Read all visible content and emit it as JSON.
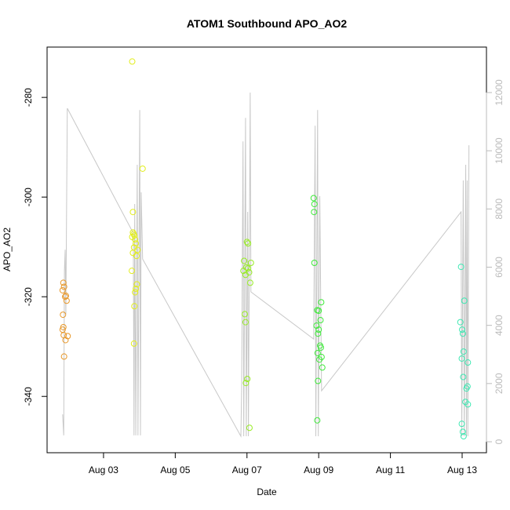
{
  "chart_data": {
    "type": "scatter",
    "title": "ATOM1 Southbound APO_AO2",
    "xlabel": "Date",
    "ylabel": "APO_AO2",
    "xlim": [
      1.426,
      13.678
    ],
    "xticks": [
      {
        "value": 3,
        "label": "Aug 03"
      },
      {
        "value": 5,
        "label": "Aug 05"
      },
      {
        "value": 7,
        "label": "Aug 07"
      },
      {
        "value": 9,
        "label": "Aug 09"
      },
      {
        "value": 11,
        "label": "Aug 11"
      },
      {
        "value": 13,
        "label": "Aug 13"
      }
    ],
    "ylim": [
      -351.3,
      -269.9
    ],
    "yticks": [
      -340,
      -320,
      -300,
      -280
    ],
    "y2lim": [
      -377,
      13563
    ],
    "y2ticks": [
      0,
      2000,
      4000,
      6000,
      8000,
      10000,
      12000
    ],
    "series": [
      {
        "color": "#e8982a",
        "x": [
          1.88,
          1.9,
          1.86,
          1.95,
          1.93,
          1.97,
          1.87,
          1.88,
          1.86,
          1.89,
          2.0,
          1.94,
          1.9
        ],
        "values": [
          -317.2,
          -318,
          -318.7,
          -319.8,
          -320,
          -320.8,
          -323.6,
          -326.1,
          -326.6,
          -327.7,
          -327.9,
          -328.7,
          -332
        ]
      },
      {
        "color": "#e2ee1e",
        "x": [
          3.8,
          4.09,
          3.82,
          3.82,
          3.84,
          3.86,
          3.8,
          3.88,
          3.9,
          3.85,
          3.95,
          3.82,
          3.92,
          3.79,
          3.93,
          3.9,
          3.88,
          3.86,
          3.85
        ],
        "values": [
          -272.8,
          -294.3,
          -303,
          -307.1,
          -307.4,
          -307.7,
          -308,
          -308.5,
          -309.3,
          -310.1,
          -310.6,
          -311.2,
          -311.8,
          -314.8,
          -317.5,
          -318.4,
          -319.1,
          -321.9,
          -329.4
        ]
      },
      {
        "color": "#98ec26",
        "x": [
          7.0,
          7.03,
          6.92,
          7.11,
          6.98,
          7.03,
          6.9,
          7.06,
          6.96,
          7.09,
          6.94,
          6.96,
          7.01,
          6.97,
          7.07
        ],
        "values": [
          -309,
          -309.3,
          -312.8,
          -313.2,
          -314.1,
          -314.3,
          -314.8,
          -315.1,
          -315.6,
          -317.2,
          -323.5,
          -325.1,
          -336.5,
          -337.3,
          -346.3
        ]
      },
      {
        "color": "#3eea3a",
        "x": [
          8.86,
          8.88,
          8.87,
          8.88,
          9.07,
          8.96,
          9.0,
          9.05,
          8.94,
          9.0,
          8.98,
          9.04,
          9.06,
          8.97,
          9.08,
          9.02,
          9.1,
          8.98,
          8.96
        ],
        "values": [
          -300.2,
          -301.4,
          -303,
          -313.2,
          -321.1,
          -322.7,
          -322.8,
          -324.7,
          -325.8,
          -326.6,
          -327.4,
          -329.8,
          -330.2,
          -331.3,
          -332.1,
          -332.6,
          -334.2,
          -336.9,
          -344.8
        ]
      },
      {
        "color": "#3ee8b2",
        "x": [
          12.97,
          13.06,
          12.95,
          13.0,
          13.02,
          13.04,
          12.99,
          13.16,
          13.03,
          13.15,
          13.12,
          13.09,
          13.16,
          12.99,
          13.02,
          13.04
        ],
        "values": [
          -314,
          -320.8,
          -325.1,
          -326.6,
          -327.4,
          -331,
          -332.4,
          -333.2,
          -336.1,
          -338,
          -338.4,
          -341.1,
          -341.6,
          -345.5,
          -347.1,
          -348
        ]
      },
      {
        "type": "line",
        "axis": "y2",
        "color": "#c8c8c8",
        "x": [
          1.86,
          1.89,
          1.91,
          1.93,
          1.95,
          1.97,
          1.99,
          3.83,
          3.85,
          3.87,
          3.9,
          3.94,
          3.96,
          4.01,
          4.03,
          4.05,
          4.09,
          6.83,
          6.85,
          6.89,
          6.91,
          6.96,
          6.98,
          7.02,
          7.04,
          7.09,
          7.11,
          8.86,
          8.9,
          8.92,
          8.97,
          8.99,
          9.03,
          9.08,
          12.97,
          12.99,
          13.03,
          13.06,
          13.1,
          13.12,
          13.14,
          13.16,
          13.19
        ],
        "values": [
          940,
          220,
          5880,
          6600,
          4390,
          8030,
          11460,
          7170,
          220,
          8170,
          220,
          9520,
          220,
          11400,
          220,
          8570,
          6280,
          190,
          1700,
          10320,
          190,
          11130,
          190,
          7900,
          190,
          12000,
          5150,
          3530,
          10860,
          190,
          11400,
          190,
          8440,
          1750,
          7900,
          190,
          8980,
          190,
          9520,
          190,
          8980,
          190,
          10190
        ]
      }
    ]
  }
}
